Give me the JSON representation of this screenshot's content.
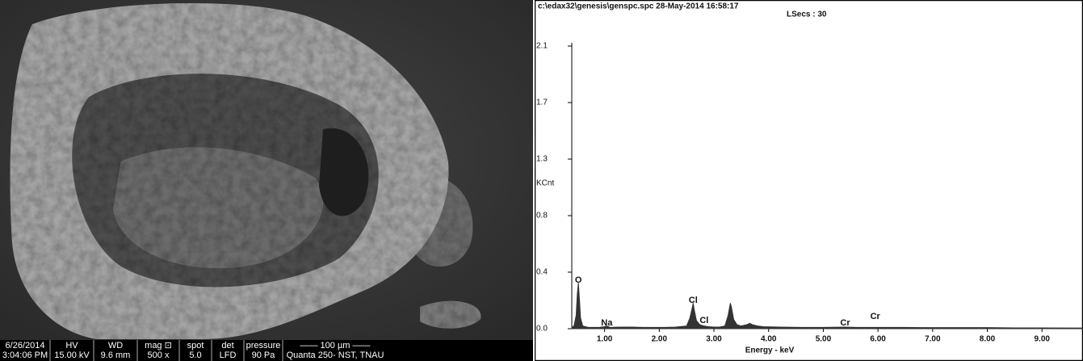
{
  "sem_image": {
    "databar": {
      "rows": [
        [
          "6/26/2014",
          "HV",
          "WD",
          "mag ⊡",
          "spot",
          "det",
          "pressure",
          "—— 100 µm ——"
        ],
        [
          "3:04:06 PM",
          "15.00 kV",
          "9.6 mm",
          "500 x",
          "5.0",
          "LFD",
          "90 Pa",
          "Quanta 250- NST, TNAU"
        ]
      ]
    }
  },
  "chart_data": {
    "type": "area",
    "title": "c:\\edax32\\genesis\\genspc.spc  28-May-2014 16:58:17",
    "subtitle": "LSecs : 30",
    "x_label": "Energy - keV",
    "y_label": "KCnt",
    "color": "#333333",
    "x": [
      0.4,
      0.44,
      0.48,
      0.5,
      0.52,
      0.54,
      0.56,
      0.6,
      0.7,
      0.8,
      0.9,
      1.0,
      1.04,
      1.1,
      1.3,
      1.5,
      1.7,
      1.9,
      2.1,
      2.3,
      2.5,
      2.56,
      2.6,
      2.62,
      2.64,
      2.68,
      2.74,
      2.82,
      2.9,
      3.0,
      3.1,
      3.2,
      3.26,
      3.3,
      3.32,
      3.36,
      3.42,
      3.5,
      3.6,
      3.66,
      3.7,
      3.8,
      3.9,
      4.2,
      4.6,
      5.0,
      5.4,
      5.6,
      6.0,
      6.4,
      7.0,
      7.5,
      8.0,
      8.5,
      9.0,
      9.5,
      9.75
    ],
    "values": [
      0.01,
      0.02,
      0.1,
      0.25,
      0.34,
      0.22,
      0.08,
      0.02,
      0.01,
      0.01,
      0.01,
      0.015,
      0.02,
      0.01,
      0.012,
      0.012,
      0.01,
      0.01,
      0.01,
      0.012,
      0.02,
      0.08,
      0.15,
      0.19,
      0.14,
      0.06,
      0.03,
      0.02,
      0.015,
      0.012,
      0.012,
      0.02,
      0.1,
      0.19,
      0.16,
      0.07,
      0.03,
      0.02,
      0.03,
      0.04,
      0.03,
      0.02,
      0.015,
      0.012,
      0.01,
      0.01,
      0.012,
      0.01,
      0.01,
      0.01,
      0.008,
      0.008,
      0.008,
      0.006,
      0.006,
      0.005,
      0.005
    ],
    "peak_labels": [
      {
        "label": "O",
        "x": 0.52,
        "y": 0.36
      },
      {
        "label": "Na",
        "x": 1.04,
        "y": 0.04
      },
      {
        "label": "Cl",
        "x": 2.62,
        "y": 0.21
      },
      {
        "label": "Cl",
        "x": 2.82,
        "y": 0.06
      },
      {
        "label": "Cr",
        "x": 5.4,
        "y": 0.04
      },
      {
        "label": "Cr",
        "x": 5.95,
        "y": 0.09
      }
    ],
    "xlim": [
      0.4,
      9.75
    ],
    "xticks": [
      {
        "value": 1,
        "label": "1.00"
      },
      {
        "value": 2,
        "label": "2.00"
      },
      {
        "value": 3,
        "label": "3.00"
      },
      {
        "value": 4,
        "label": "4.00"
      },
      {
        "value": 5,
        "label": "5.00"
      },
      {
        "value": 6,
        "label": "6.00"
      },
      {
        "value": 7,
        "label": "7.00"
      },
      {
        "value": 8,
        "label": "8.00"
      },
      {
        "value": 9,
        "label": "9.00"
      }
    ],
    "ylim": [
      0,
      2.1
    ],
    "yticks": [
      {
        "value": 0,
        "label": "0.0"
      },
      {
        "value": 0.42,
        "label": "0.4"
      },
      {
        "value": 0.84,
        "label": "0.8"
      },
      {
        "value": 1.26,
        "label": "1.3"
      },
      {
        "value": 1.68,
        "label": "1.7"
      },
      2.1
    ]
  }
}
